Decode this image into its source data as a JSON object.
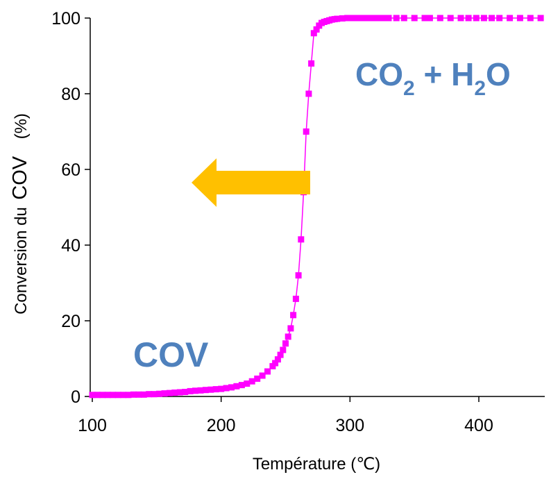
{
  "chart_data": {
    "type": "scatter",
    "xlabel": "Température (℃)",
    "ylabel": {
      "part1": "Conversion du",
      "part2": "COV",
      "part3": "(%)"
    },
    "xlim": [
      100,
      450
    ],
    "ylim": [
      0,
      100
    ],
    "xticks": [
      100,
      200,
      300,
      400
    ],
    "yticks": [
      0,
      20,
      40,
      60,
      80,
      100
    ],
    "grid": false,
    "series": [
      {
        "marker": "square",
        "color": "#FF00FF",
        "x": [
          100,
          104,
          108,
          112,
          116,
          120,
          124,
          128,
          132,
          136,
          140,
          144,
          148,
          152,
          156,
          160,
          164,
          168,
          172,
          176,
          180,
          184,
          188,
          192,
          196,
          200,
          204,
          208,
          212,
          216,
          220,
          224,
          228,
          232,
          236,
          240,
          242,
          244,
          246,
          248,
          250,
          252,
          254,
          256,
          258,
          260,
          262,
          264,
          266,
          268,
          270,
          272,
          274,
          276,
          278,
          280,
          282,
          284,
          286,
          288,
          290,
          294,
          298,
          302,
          306,
          310,
          314,
          318,
          322,
          326,
          330,
          336,
          342,
          350,
          358,
          362,
          370,
          378,
          386,
          392,
          398,
          404,
          410,
          416,
          424,
          432,
          440,
          448
        ],
        "y": [
          0.4,
          0.4,
          0.4,
          0.4,
          0.4,
          0.4,
          0.4,
          0.4,
          0.5,
          0.5,
          0.5,
          0.6,
          0.6,
          0.7,
          0.8,
          0.9,
          1.0,
          1.1,
          1.2,
          1.4,
          1.5,
          1.6,
          1.7,
          1.8,
          1.9,
          2.0,
          2.2,
          2.4,
          2.7,
          3.0,
          3.4,
          4.0,
          4.7,
          5.5,
          6.6,
          8.0,
          8.8,
          9.8,
          11.0,
          12.3,
          14.0,
          15.8,
          18.0,
          21.5,
          25.8,
          32.0,
          41.5,
          54.0,
          70.0,
          80.0,
          88.0,
          96.0,
          97.0,
          98.0,
          98.7,
          99.0,
          99.2,
          99.4,
          99.6,
          99.7,
          99.8,
          99.9,
          100,
          100,
          100,
          100,
          100,
          100,
          100,
          100,
          100,
          100,
          100,
          100,
          100,
          100,
          100,
          100,
          100,
          100,
          100,
          100,
          100,
          100,
          100,
          100,
          100,
          100
        ]
      }
    ],
    "annotations": {
      "products": {
        "p1": "CO",
        "p1sub": "2",
        "p2": " + H",
        "p2sub": "2",
        "p3": "O",
        "color": "#4F81BD"
      },
      "reactant": {
        "text": "COV",
        "color": "#4F81BD"
      },
      "arrow": {
        "color": "#FFC000",
        "direction": "left"
      }
    }
  }
}
